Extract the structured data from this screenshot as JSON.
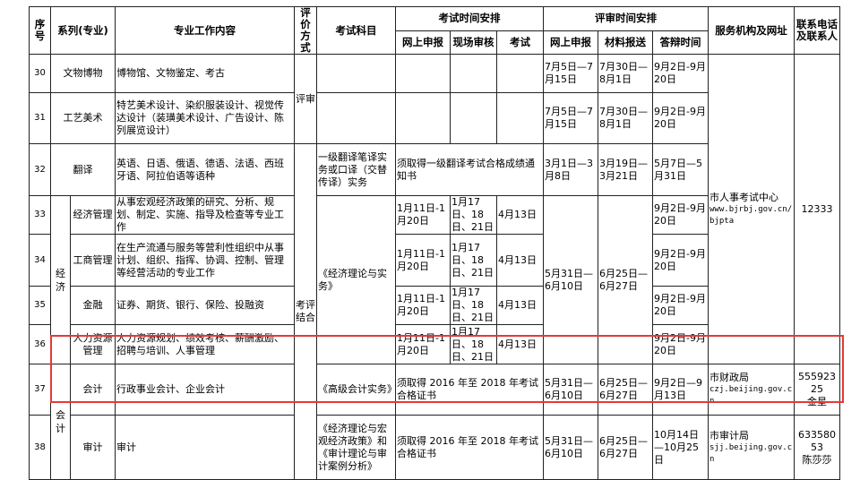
{
  "header": {
    "seq": "序号",
    "series": "系列(专业)",
    "content": "专业工作内容",
    "method": "评价方式",
    "subject": "考试科目",
    "exam_schedule": "考试时间安排",
    "exam_online": "网上申报",
    "exam_onsite": "现场审核",
    "exam_test": "考试",
    "review_schedule": "评审时间安排",
    "review_online": "网上申报",
    "review_material": "材料报送",
    "review_defense": "答辩时间",
    "agency": "服务机构及网址",
    "contact": "联系电话及联系人"
  },
  "groups": {
    "method_review": "评审",
    "method_combined": "考评结合",
    "economy": "经济",
    "accounting": "会计",
    "econ_subject": "《经济理论与实务》",
    "econ_review_online": "5月31日—6月10日",
    "econ_review_material": "6月25日—6月27日",
    "hr_agency_name": "市人事考试中心",
    "hr_agency_url": "www.bjrbj.gov.cn/bjpta",
    "hr_phone": "12333"
  },
  "rows": [
    {
      "seq": "30",
      "series": "文物博物",
      "content": "博物馆、文物鉴定、考古",
      "review_online": "7月5日—7月15日",
      "review_material": "7月30日—8月1日",
      "review_defense": "9月2日-9月20日"
    },
    {
      "seq": "31",
      "series": "工艺美术",
      "content": "特艺美术设计、染织服装设计、视觉传达设计（装璜美术设计、广告设计、陈列展览设计）",
      "review_online": "7月5日—7月15日",
      "review_material": "7月30日—8月1日",
      "review_defense": "9月2日-9月20日"
    },
    {
      "seq": "32",
      "series": "翻译",
      "content": "英语、日语、俄语、德语、法语、西班牙语、阿拉伯语等语种",
      "subject": "一级翻译笔译实务或口译（交替传译）实务",
      "exam_note": "须取得一级翻译考试合格成绩通知书",
      "review_online": "3月1日—3月8日",
      "review_material": "3月19日—3月21日",
      "review_defense": "5月7日—5月31日"
    },
    {
      "seq": "33",
      "series": "经济管理",
      "content": "从事宏观经济政策的研究、分析、规划、制定、实施、指导及检查等专业工作",
      "exam_online": "1月11日-1月20日",
      "exam_onsite": "1月17日、18日、21日",
      "exam_test": "4月13日",
      "review_defense": "9月2日-9月20日"
    },
    {
      "seq": "34",
      "series": "工商管理",
      "content": "在生产流通与服务等营利性组织中从事计划、组织、指挥、协调、控制、管理等经营活动的专业工作",
      "exam_online": "1月11日-1月20日",
      "exam_onsite": "1月17日、18日、21日",
      "exam_test": "4月13日",
      "review_defense": "9月2日-9月20日"
    },
    {
      "seq": "35",
      "series": "金融",
      "content": "证券、期货、银行、保险、投融资",
      "exam_online": "1月11日-1月20日",
      "exam_onsite": "1月17日、18日、21日",
      "exam_test": "4月13日",
      "review_defense": "9月2日-9月20日"
    },
    {
      "seq": "36",
      "series": "人力资源管理",
      "content": "人力资源规划、绩效考核、薪酬激励、招聘与培训、人事管理",
      "exam_online": "1月11日-1月20日",
      "exam_onsite": "1月17日、18日、21日",
      "exam_test": "4月13日",
      "review_defense": "9月2日-9月20日"
    },
    {
      "seq": "37",
      "series": "会计",
      "content": "行政事业会计、企业会计",
      "subject": "《高级会计实务》",
      "exam_note": "须取得 2016 年至 2018 年考试合格证书",
      "review_online": "5月31日—6月10日",
      "review_material": "6月25日—6月27日",
      "review_defense": "9月2日—9月13日",
      "agency_name": "市财政局",
      "agency_url": "czj.beijing.gov.cn",
      "phone": "55592325",
      "contact": "金星"
    },
    {
      "seq": "38",
      "series": "审计",
      "content": "审计",
      "subject": "《经济理论与宏观经济政策》和《审计理论与审计案例分析》",
      "exam_note": "须取得 2016 年至 2018 年考试合格证书",
      "review_online": "5月31日—6月10日",
      "review_material": "6月25日—6月27日",
      "review_defense": "10月14日—10月25日",
      "agency_name": "市审计局",
      "agency_url": "sjj.beijing.gov.cn",
      "phone": "63358053",
      "contact": "陈莎莎"
    }
  ],
  "highlight_color": "#e53935"
}
